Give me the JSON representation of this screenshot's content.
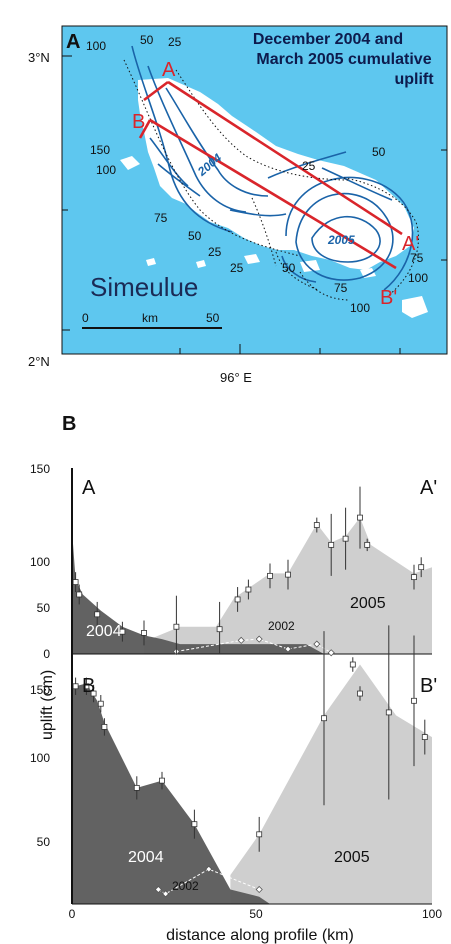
{
  "panel_a": {
    "letter": "A",
    "title_lines": [
      "December 2004 and",
      "March 2005 cumulative",
      "uplift"
    ],
    "lat_top": "3°N",
    "lat_bottom": "2°N",
    "lon": "96° E",
    "island_name": "Simeulue",
    "scale_start": "0",
    "scale_unit": "km",
    "scale_end": "50",
    "profile_labels": {
      "a": "A",
      "a_prime": "A'",
      "b": "B",
      "b_prime": "B'"
    },
    "contour_labels": [
      "100",
      "50",
      "25",
      "150",
      "100",
      "2004",
      "25",
      "50",
      "75",
      "50",
      "25",
      "25",
      "50",
      "2005",
      "75",
      "75",
      "100",
      "100"
    ],
    "colors": {
      "sea": "#5ec7ef",
      "land": "#ffffff",
      "contour": "#1a63a8",
      "profile": "#d9252b"
    }
  },
  "panel_b": {
    "letter": "B",
    "ylabel": "uplift (cm)",
    "xlabel": "distance along profile (km)",
    "x_ticks": [
      "0",
      "50",
      "100"
    ],
    "top_y_ticks": [
      "150",
      "100",
      "50",
      "0"
    ],
    "bottom_y_ticks": [
      "150",
      "100",
      "50"
    ],
    "top_labels": {
      "left": "A",
      "right": "A'",
      "year_2004": "2004",
      "year_2005": "2005",
      "year_2002": "2002"
    },
    "bottom_labels": {
      "left": "B",
      "right": "B'",
      "year_2004": "2004",
      "year_2005": "2005",
      "year_2002": "2002"
    },
    "colors": {
      "area_2004": "#5a5a5a",
      "area_2005": "#cfcfcf"
    }
  },
  "chart_data": [
    {
      "type": "area",
      "profile": "A-A'",
      "xlim": [
        0,
        100
      ],
      "ylim": [
        0,
        150
      ],
      "series": [
        {
          "name": "2004",
          "x": [
            0,
            1,
            3,
            8,
            14,
            20,
            25,
            30,
            40,
            50,
            60,
            65,
            70
          ],
          "y": [
            100,
            60,
            48,
            35,
            22,
            15,
            12,
            8,
            8,
            8,
            8,
            8,
            0
          ]
        },
        {
          "name": "2005",
          "x": [
            20,
            30,
            40,
            45,
            50,
            55,
            60,
            68,
            72,
            76,
            80,
            83,
            95,
            100
          ],
          "y": [
            10,
            22,
            22,
            45,
            55,
            65,
            65,
            105,
            90,
            95,
            110,
            88,
            65,
            70
          ]
        }
      ],
      "measurements": {
        "x": [
          1,
          2,
          7,
          14,
          20,
          29,
          41,
          46,
          49,
          55,
          60,
          68,
          72,
          76,
          80,
          82,
          95,
          97
        ],
        "y": [
          58,
          48,
          32,
          18,
          17,
          22,
          20,
          44,
          52,
          63,
          64,
          104,
          88,
          93,
          110,
          88,
          62,
          70
        ],
        "err": [
          8,
          8,
          10,
          8,
          10,
          25,
          22,
          10,
          8,
          10,
          12,
          6,
          25,
          25,
          25,
          5,
          10,
          8
        ]
      },
      "series_2002": {
        "x": [
          29,
          47,
          52,
          60,
          68,
          72
        ],
        "y": [
          2,
          11,
          12,
          4,
          8,
          1
        ]
      }
    },
    {
      "type": "area",
      "profile": "B-B'",
      "xlim": [
        0,
        100
      ],
      "ylim": [
        0,
        175
      ],
      "series": [
        {
          "name": "2004",
          "x": [
            0,
            1,
            4,
            7,
            9,
            18,
            25,
            34,
            44,
            52,
            55
          ],
          "y": [
            150,
            150,
            152,
            140,
            125,
            80,
            85,
            55,
            10,
            5,
            0
          ]
        },
        {
          "name": "2005",
          "x": [
            44,
            52,
            70,
            80,
            90,
            100
          ],
          "y": [
            20,
            48,
            130,
            165,
            130,
            115
          ]
        }
      ],
      "measurements": {
        "x": [
          1,
          4,
          6,
          8,
          9,
          18,
          25,
          34,
          52,
          70,
          78,
          80,
          88,
          95,
          98
        ],
        "y": [
          150,
          150,
          145,
          138,
          122,
          80,
          85,
          55,
          48,
          128,
          165,
          145,
          132,
          140,
          115
        ],
        "err": [
          6,
          6,
          6,
          6,
          6,
          8,
          6,
          10,
          12,
          60,
          5,
          5,
          60,
          45,
          12
        ]
      },
      "series_2002": {
        "x": [
          24,
          26,
          38,
          52
        ],
        "y": [
          10,
          7,
          24,
          10
        ]
      }
    }
  ]
}
